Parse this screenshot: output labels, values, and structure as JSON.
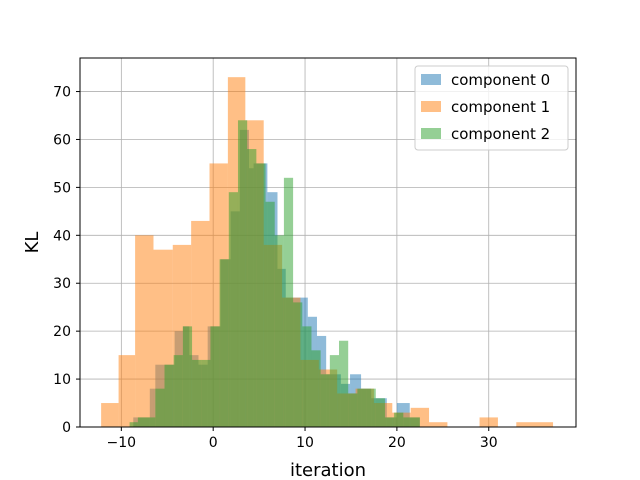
{
  "chart_data": {
    "type": "histogram",
    "title": "",
    "xlabel": "iteration",
    "ylabel": "KL",
    "xlim": [
      -14.5,
      39.5
    ],
    "ylim": [
      0,
      77
    ],
    "xticks": [
      -10,
      0,
      10,
      20,
      30
    ],
    "yticks": [
      0,
      10,
      20,
      30,
      40,
      50,
      60,
      70
    ],
    "grid": true,
    "legend_position": "top-right",
    "series": [
      {
        "name": "component 0",
        "color": "#1f77b4",
        "opacity": 0.5,
        "bins": [
          {
            "x0": -8.7,
            "x1": -6.9,
            "count": 2
          },
          {
            "x0": -6.9,
            "x1": -6.3,
            "count": 8
          },
          {
            "x0": -6.3,
            "x1": -4.2,
            "count": 13
          },
          {
            "x0": -4.2,
            "x1": -3.3,
            "count": 20
          },
          {
            "x0": -3.3,
            "x1": -2.6,
            "count": 21
          },
          {
            "x0": -2.6,
            "x1": -1.6,
            "count": 15
          },
          {
            "x0": -1.6,
            "x1": -0.6,
            "count": 13
          },
          {
            "x0": -0.6,
            "x1": 0.8,
            "count": 21
          },
          {
            "x0": 0.8,
            "x1": 1.9,
            "count": 35
          },
          {
            "x0": 1.9,
            "x1": 2.9,
            "count": 45
          },
          {
            "x0": 2.9,
            "x1": 3.9,
            "count": 62
          },
          {
            "x0": 3.9,
            "x1": 4.4,
            "count": 54
          },
          {
            "x0": 4.4,
            "x1": 5.9,
            "count": 55
          },
          {
            "x0": 5.9,
            "x1": 7.0,
            "count": 49
          },
          {
            "x0": 7.0,
            "x1": 7.9,
            "count": 33
          },
          {
            "x0": 7.9,
            "x1": 8.8,
            "count": 27
          },
          {
            "x0": 8.8,
            "x1": 10.3,
            "count": 27
          },
          {
            "x0": 10.3,
            "x1": 11.3,
            "count": 23
          },
          {
            "x0": 11.3,
            "x1": 12.3,
            "count": 19
          },
          {
            "x0": 12.3,
            "x1": 13.9,
            "count": 11
          },
          {
            "x0": 13.9,
            "x1": 14.9,
            "count": 9
          },
          {
            "x0": 14.9,
            "x1": 16.1,
            "count": 11
          },
          {
            "x0": 16.1,
            "x1": 17.2,
            "count": 8
          },
          {
            "x0": 17.2,
            "x1": 18.9,
            "count": 6
          },
          {
            "x0": 18.9,
            "x1": 20.0,
            "count": 2
          },
          {
            "x0": 20.0,
            "x1": 21.4,
            "count": 5
          },
          {
            "x0": 21.4,
            "x1": 22.5,
            "count": 2
          }
        ]
      },
      {
        "name": "component 1",
        "color": "#ff7f0e",
        "opacity": 0.5,
        "bins": [
          {
            "x0": -12.2,
            "x1": -10.3,
            "count": 5
          },
          {
            "x0": -10.3,
            "x1": -8.5,
            "count": 15
          },
          {
            "x0": -8.5,
            "x1": -6.5,
            "count": 40
          },
          {
            "x0": -6.5,
            "x1": -4.4,
            "count": 37
          },
          {
            "x0": -4.4,
            "x1": -2.4,
            "count": 38
          },
          {
            "x0": -2.4,
            "x1": -0.4,
            "count": 43
          },
          {
            "x0": -0.4,
            "x1": 1.6,
            "count": 55
          },
          {
            "x0": 1.6,
            "x1": 3.5,
            "count": 73
          },
          {
            "x0": 3.5,
            "x1": 5.5,
            "count": 64
          },
          {
            "x0": 5.5,
            "x1": 7.5,
            "count": 38
          },
          {
            "x0": 7.5,
            "x1": 9.5,
            "count": 27
          },
          {
            "x0": 9.5,
            "x1": 11.5,
            "count": 14
          },
          {
            "x0": 11.5,
            "x1": 13.5,
            "count": 12
          },
          {
            "x0": 13.5,
            "x1": 15.5,
            "count": 7
          },
          {
            "x0": 15.5,
            "x1": 17.5,
            "count": 8
          },
          {
            "x0": 17.5,
            "x1": 19.5,
            "count": 5
          },
          {
            "x0": 19.5,
            "x1": 21.5,
            "count": 3
          },
          {
            "x0": 21.5,
            "x1": 23.5,
            "count": 4
          },
          {
            "x0": 23.5,
            "x1": 25.5,
            "count": 1
          },
          {
            "x0": 29.0,
            "x1": 31.0,
            "count": 2
          },
          {
            "x0": 33.0,
            "x1": 37.0,
            "count": 1
          }
        ]
      },
      {
        "name": "component 2",
        "color": "#2ca02c",
        "opacity": 0.5,
        "bins": [
          {
            "x0": -9.1,
            "x1": -8.2,
            "count": 1
          },
          {
            "x0": -8.2,
            "x1": -6.3,
            "count": 2
          },
          {
            "x0": -6.3,
            "x1": -5.3,
            "count": 8
          },
          {
            "x0": -5.3,
            "x1": -4.3,
            "count": 13
          },
          {
            "x0": -4.3,
            "x1": -3.3,
            "count": 15
          },
          {
            "x0": -3.3,
            "x1": -2.3,
            "count": 21
          },
          {
            "x0": -2.3,
            "x1": -1.3,
            "count": 14
          },
          {
            "x0": -1.3,
            "x1": -0.3,
            "count": 14
          },
          {
            "x0": -0.3,
            "x1": 0.7,
            "count": 21
          },
          {
            "x0": 0.7,
            "x1": 1.7,
            "count": 35
          },
          {
            "x0": 1.7,
            "x1": 2.7,
            "count": 49
          },
          {
            "x0": 2.7,
            "x1": 3.7,
            "count": 64
          },
          {
            "x0": 3.7,
            "x1": 4.7,
            "count": 58
          },
          {
            "x0": 4.7,
            "x1": 5.7,
            "count": 55
          },
          {
            "x0": 5.7,
            "x1": 6.7,
            "count": 47
          },
          {
            "x0": 6.7,
            "x1": 7.7,
            "count": 40
          },
          {
            "x0": 7.7,
            "x1": 8.7,
            "count": 52
          },
          {
            "x0": 8.7,
            "x1": 9.7,
            "count": 26
          },
          {
            "x0": 9.7,
            "x1": 10.7,
            "count": 21
          },
          {
            "x0": 10.7,
            "x1": 11.7,
            "count": 16
          },
          {
            "x0": 11.7,
            "x1": 12.7,
            "count": 11
          },
          {
            "x0": 12.7,
            "x1": 13.7,
            "count": 15
          },
          {
            "x0": 13.7,
            "x1": 14.7,
            "count": 18
          },
          {
            "x0": 14.7,
            "x1": 15.7,
            "count": 7
          },
          {
            "x0": 15.7,
            "x1": 16.7,
            "count": 8
          },
          {
            "x0": 16.7,
            "x1": 17.7,
            "count": 8
          },
          {
            "x0": 17.7,
            "x1": 18.7,
            "count": 6
          },
          {
            "x0": 18.7,
            "x1": 19.7,
            "count": 2
          },
          {
            "x0": 19.7,
            "x1": 20.7,
            "count": 3
          },
          {
            "x0": 20.7,
            "x1": 22.5,
            "count": 2
          }
        ]
      }
    ]
  }
}
